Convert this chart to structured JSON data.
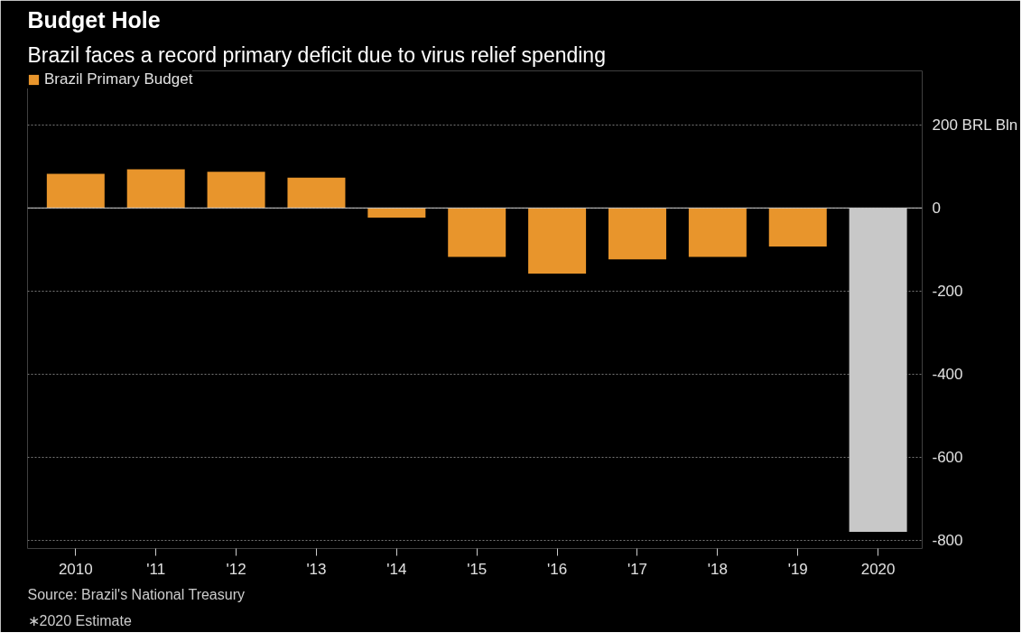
{
  "chart_data": {
    "type": "bar",
    "title": "Budget Hole",
    "subtitle": "Brazil faces a record primary deficit due to virus relief spending",
    "categories": [
      "2010",
      "'11",
      "'12",
      "'13",
      "'14",
      "'15",
      "'16",
      "'17",
      "'18",
      "'19",
      "2020"
    ],
    "series": [
      {
        "name": "Brazil Primary Budget",
        "color": "#e8952c",
        "colors": [
          null,
          null,
          null,
          null,
          null,
          null,
          null,
          null,
          null,
          null,
          "#c8c8c8"
        ],
        "values": [
          82,
          93,
          87,
          73,
          -23,
          -118,
          -158,
          -124,
          -118,
          -93,
          -780
        ]
      }
    ],
    "ylim": [
      -820,
      330
    ],
    "yticks": [
      {
        "value": 200,
        "label": "200 BRL Bln"
      },
      0,
      -200,
      -400,
      -600,
      -800
    ],
    "grid": "y",
    "legend": "top left",
    "annotations": [
      "Source: Brazil's National Treasury",
      "∗2020 Estimate"
    ]
  }
}
